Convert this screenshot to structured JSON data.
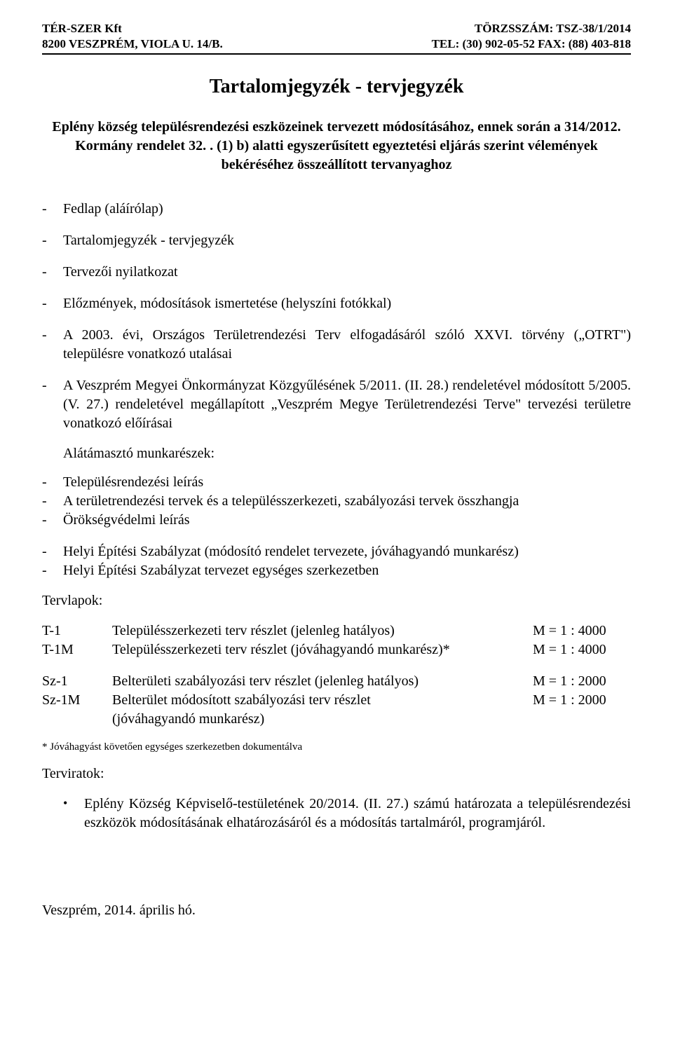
{
  "header": {
    "company": "TÉR-SZER Kft",
    "reg": "TÖRZSSZÁM: TSZ-38/1/2014",
    "address": "8200 VESZPRÉM, VIOLA U. 14/B.",
    "contact": "TEL: (30) 902-05-52 FAX: (88) 403-818"
  },
  "title": "Tartalomjegyzék - tervjegyzék",
  "intro": "Eplény község településrendezési eszközeinek tervezett módosításához, ennek során a 314/2012. Kormány rendelet 32. . (1) b) alatti egyszerűsített egyeztetési eljárás szerint vélemények bekéréséhez összeállított tervanyaghoz",
  "items": {
    "i1": "Fedlap (aláírólap)",
    "i2": "Tartalomjegyzék - tervjegyzék",
    "i3": "Tervezői nyilatkozat",
    "i4": "Előzmények, módosítások ismertetése (helyszíni fotókkal)",
    "i5": "A 2003. évi, Országos Területrendezési Terv elfogadásáról szóló XXVI. törvény („OTRT\") településre vonatkozó utalásai",
    "i6": "A Veszprém Megyei Önkormányzat Közgyűlésének 5/2011. (II. 28.) rendeletével módosított 5/2005. (V. 27.) rendeletével megállapított „Veszprém Megye Területrendezési Terve\" tervezési területre vonatkozó előírásai"
  },
  "sub1": "Alátámasztó munkarészek:",
  "group2": {
    "g1": "Településrendezési leírás",
    "g2": "A területrendezési tervek és a településszerkezeti, szabályozási tervek összhangja",
    "g3": "Örökségvédelmi leírás"
  },
  "group3": {
    "h1": "Helyi Építési Szabályzat (módosító rendelet tervezete, jóváhagyandó munkarész)",
    "h2": "Helyi Építési Szabályzat tervezet egységes szerkezetben"
  },
  "tervlapok_label": "Tervlapok:",
  "terv": {
    "r1": {
      "code": "T-1",
      "desc": "Településszerkezeti terv részlet (jelenleg hatályos)",
      "scale": "M = 1 : 4000"
    },
    "r2": {
      "code": "T-1M",
      "desc": "Településszerkezeti terv részlet (jóváhagyandó munkarész)*",
      "scale": "M = 1 : 4000"
    },
    "r3": {
      "code": "Sz-1",
      "desc": "Belterületi szabályozási terv részlet (jelenleg hatályos)",
      "scale": "M = 1 : 2000"
    },
    "r4": {
      "code": "Sz-1M",
      "desc": "Belterület módosított szabályozási terv részlet",
      "scale": "M = 1 : 2000"
    },
    "r4b": {
      "desc": "(jóváhagyandó munkarész)"
    }
  },
  "footnote": "* Jóváhagyást követően egységes szerkezetben dokumentálva",
  "terviratok_label": "Terviratok:",
  "bullet1": "Eplény Község Képviselő-testületének 20/2014. (II. 27.) számú határozata a településrendezési eszközök módosításának elhatározásáról és a módosítás tartalmáról, programjáról.",
  "footer": "Veszprém, 2014. április hó."
}
